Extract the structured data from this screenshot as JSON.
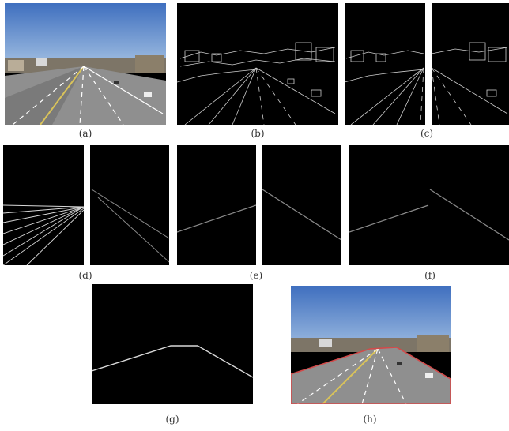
{
  "captions": {
    "a": "(a)",
    "b": "(b)",
    "c": "(c)",
    "d": "(d)",
    "e": "(e)",
    "f": "(f)",
    "g": "(g)",
    "h": "(h)"
  },
  "colors": {
    "panel_bg": "#000000",
    "edge_line": "#cfcfcf",
    "sky": "#5a86c8",
    "road": "#8c8c8c",
    "lane_marking": "#ffffff",
    "detected_boundary": "#d24a4a"
  }
}
